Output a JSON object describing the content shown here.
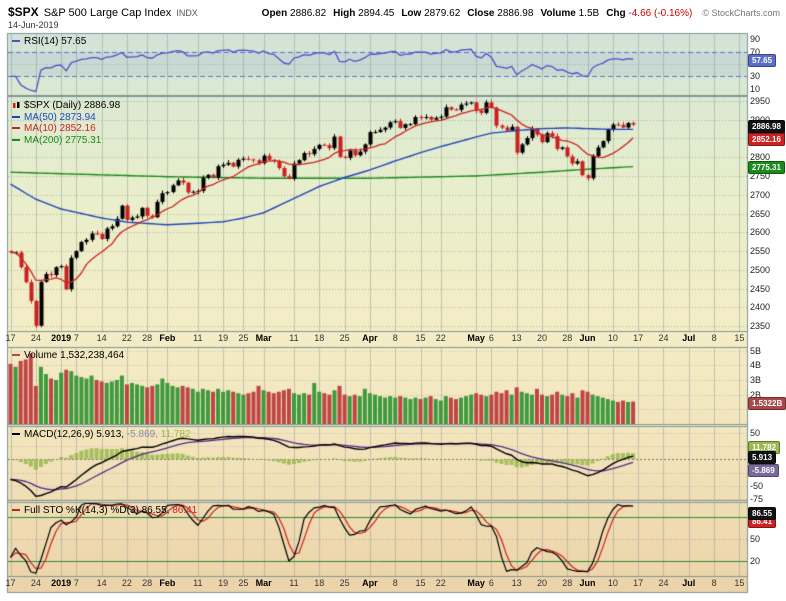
{
  "header": {
    "symbol": "$SPX",
    "name": "S&P 500 Large Cap Index",
    "exchange": "INDX",
    "date": "14-Jun-2019",
    "copyright": "© StockCharts.com",
    "quote": [
      {
        "label": "Open",
        "value": "2886.82",
        "color": "#000000"
      },
      {
        "label": "High",
        "value": "2894.45",
        "color": "#000000"
      },
      {
        "label": "Low",
        "value": "2879.62",
        "color": "#000000"
      },
      {
        "label": "Close",
        "value": "2886.98",
        "color": "#000000"
      },
      {
        "label": "Volume",
        "value": "1.5B",
        "color": "#000000"
      },
      {
        "label": "Chg",
        "value": "-4.66 (-0.16%)",
        "color": "#cc0000"
      }
    ]
  },
  "xaxis": {
    "labels": [
      {
        "t": "17",
        "i": 0,
        "b": 0
      },
      {
        "t": "24",
        "i": 5,
        "b": 0
      },
      {
        "t": "2019",
        "i": 10,
        "b": 1
      },
      {
        "t": "7",
        "i": 13,
        "b": 0
      },
      {
        "t": "14",
        "i": 18,
        "b": 0
      },
      {
        "t": "22",
        "i": 23,
        "b": 0
      },
      {
        "t": "28",
        "i": 27,
        "b": 0
      },
      {
        "t": "Feb",
        "i": 31,
        "b": 1
      },
      {
        "t": "11",
        "i": 37,
        "b": 0
      },
      {
        "t": "19",
        "i": 42,
        "b": 0
      },
      {
        "t": "25",
        "i": 46,
        "b": 0
      },
      {
        "t": "Mar",
        "i": 50,
        "b": 1
      },
      {
        "t": "11",
        "i": 56,
        "b": 0
      },
      {
        "t": "18",
        "i": 61,
        "b": 0
      },
      {
        "t": "25",
        "i": 66,
        "b": 0
      },
      {
        "t": "Apr",
        "i": 71,
        "b": 1
      },
      {
        "t": "8",
        "i": 76,
        "b": 0
      },
      {
        "t": "15",
        "i": 81,
        "b": 0
      },
      {
        "t": "22",
        "i": 85,
        "b": 0
      },
      {
        "t": "May",
        "i": 92,
        "b": 1
      },
      {
        "t": "6",
        "i": 95,
        "b": 0
      },
      {
        "t": "13",
        "i": 100,
        "b": 0
      },
      {
        "t": "20",
        "i": 105,
        "b": 0
      },
      {
        "t": "28",
        "i": 110,
        "b": 0
      },
      {
        "t": "Jun",
        "i": 114,
        "b": 1
      },
      {
        "t": "10",
        "i": 119,
        "b": 0
      },
      {
        "t": "17",
        "i": 124,
        "b": 0
      },
      {
        "t": "24",
        "i": 129,
        "b": 0
      },
      {
        "t": "Jul",
        "i": 134,
        "b": 1
      },
      {
        "t": "8",
        "i": 139,
        "b": 0
      },
      {
        "t": "15",
        "i": 144,
        "b": 0
      }
    ]
  },
  "panels": {
    "rsi": {
      "legend": "RSI(14) 57.65",
      "line_color": "#5050c8",
      "yticks": [
        90,
        70,
        30,
        10
      ],
      "overbought": 70,
      "oversold": 30,
      "badge": {
        "text": "57.65",
        "v": 57.65,
        "bg": "#5a6ec8"
      }
    },
    "price": {
      "legends": [
        {
          "text": "$SPX (Daily) 2886.98",
          "color": "#000000",
          "marker": "candle"
        },
        {
          "text": "MA(50) 2873.94",
          "color": "#2244bb",
          "marker": "#2244bb"
        },
        {
          "text": "MA(10) 2852.16",
          "color": "#cc2222",
          "marker": "#cc2222"
        },
        {
          "text": "MA(200) 2775.31",
          "color": "#1a8a1a",
          "marker": "#1a8a1a"
        }
      ],
      "yticks": [
        2950,
        2900,
        2850,
        2800,
        2750,
        2700,
        2650,
        2600,
        2550,
        2500,
        2450,
        2400,
        2350
      ],
      "badges": [
        {
          "text": "2873.94",
          "v": 2873.94,
          "bg": "#2244bb"
        },
        {
          "text": "2886.98",
          "v": 2886.98,
          "bg": "#111111"
        },
        {
          "text": "2852.16",
          "v": 2852.16,
          "bg": "#cc2222"
        },
        {
          "text": "2775.31",
          "v": 2775.31,
          "bg": "#1a8a1a"
        }
      ]
    },
    "volume": {
      "legend": "Volume 1,532,238,464",
      "yticks": [
        {
          "t": "5B",
          "v": 5
        },
        {
          "t": "4B",
          "v": 4
        },
        {
          "t": "3B",
          "v": 3
        },
        {
          "t": "2B",
          "v": 2
        }
      ],
      "badge": {
        "text": "1.5322B",
        "v": 1.532,
        "bg": "#a84848"
      }
    },
    "macd": {
      "legend_parts": [
        {
          "t": "MACD(12,26,9) 5.913,",
          "c": "#000000"
        },
        {
          "t": " -5.869,",
          "c": "#8888aa"
        },
        {
          "t": " 11.782",
          "c": "#9ab84f"
        }
      ],
      "yticks": [
        50,
        25,
        0,
        -25,
        -50,
        -75
      ],
      "badges": [
        {
          "text": "11.782",
          "v": 11.782,
          "bg": "#9ab84f",
          "dy": -7
        },
        {
          "text": "-5.869",
          "v": -5.869,
          "bg": "#7a6a9a",
          "dy": 7
        },
        {
          "text": "5.913",
          "v": 5.913,
          "bg": "#111111",
          "dy": 0
        }
      ]
    },
    "sto": {
      "legend_parts": [
        {
          "t": "Full STO %K(14,3) %D(3) 86.55,",
          "c": "#000000"
        },
        {
          "t": " 86.41",
          "c": "#cc2222"
        }
      ],
      "yticks": [
        80,
        50,
        20
      ],
      "upper": 80,
      "lower": 20,
      "badges": [
        {
          "text": "86.41",
          "v": 86.41,
          "bg": "#cc2222",
          "dy": 8
        },
        {
          "text": "86.55",
          "v": 86.55,
          "bg": "#111111",
          "dy": 0
        }
      ]
    }
  },
  "chart_data": {
    "type": "candlestick",
    "title": "$SPX S&P 500 Large Cap Index (Daily) with RSI(14), Volume, MACD(12,26,9), Full Stochastic %K(14,3) %D(3)",
    "x_start_date": "2018-12-17",
    "x_end_date": "2019-06-14",
    "xlim": [
      0,
      146
    ],
    "price_ylim": [
      2337,
      2963
    ],
    "close": [
      2546,
      2546,
      2507,
      2467,
      2417,
      2351,
      2468,
      2489,
      2486,
      2507,
      2510,
      2448,
      2532,
      2550,
      2574,
      2580,
      2597,
      2596,
      2582,
      2610,
      2616,
      2636,
      2671,
      2633,
      2639,
      2642,
      2665,
      2644,
      2640,
      2681,
      2704,
      2707,
      2725,
      2738,
      2732,
      2706,
      2708,
      2710,
      2745,
      2753,
      2746,
      2776,
      2780,
      2785,
      2775,
      2793,
      2796,
      2794,
      2792,
      2784,
      2804,
      2793,
      2790,
      2771,
      2749,
      2743,
      2783,
      2792,
      2811,
      2808,
      2822,
      2833,
      2832,
      2824,
      2855,
      2801,
      2798,
      2818,
      2805,
      2815,
      2834,
      2867,
      2867,
      2873,
      2879,
      2893,
      2896,
      2878,
      2888,
      2888,
      2907,
      2906,
      2907,
      2900,
      2905,
      2908,
      2933,
      2927,
      2926,
      2940,
      2943,
      2946,
      2924,
      2918,
      2946,
      2932,
      2884,
      2879,
      2871,
      2881,
      2812,
      2834,
      2851,
      2876,
      2860,
      2840,
      2864,
      2856,
      2822,
      2826,
      2802,
      2783,
      2789,
      2752,
      2744,
      2803,
      2826,
      2843,
      2873,
      2887,
      2886,
      2879,
      2891,
      2887
    ],
    "volume_billions": [
      4.1,
      3.9,
      4.3,
      4.4,
      4.8,
      2.6,
      3.9,
      3.4,
      3.1,
      3.0,
      3.5,
      3.7,
      3.6,
      3.3,
      3.2,
      3.1,
      3.3,
      3.0,
      2.9,
      2.8,
      2.9,
      3.0,
      3.3,
      2.7,
      2.8,
      2.7,
      2.6,
      2.5,
      2.6,
      2.7,
      3.1,
      2.8,
      2.6,
      2.5,
      2.6,
      2.5,
      2.4,
      2.2,
      2.4,
      2.3,
      2.2,
      2.4,
      2.2,
      2.3,
      2.2,
      2.1,
      2.0,
      2.1,
      2.2,
      2.6,
      2.3,
      2.2,
      2.1,
      2.2,
      2.3,
      2.4,
      2.1,
      2.0,
      2.1,
      2.0,
      2.8,
      2.2,
      2.1,
      2.0,
      2.3,
      2.6,
      2.0,
      1.9,
      2.0,
      1.9,
      2.4,
      2.1,
      2.0,
      1.9,
      1.8,
      1.9,
      1.8,
      1.9,
      1.8,
      1.7,
      1.8,
      1.7,
      1.8,
      1.9,
      1.7,
      1.6,
      1.9,
      1.8,
      1.7,
      1.8,
      1.9,
      2.0,
      2.1,
      2.0,
      1.9,
      2.0,
      2.2,
      2.1,
      2.3,
      2.0,
      2.5,
      2.2,
      2.1,
      2.0,
      2.4,
      2.0,
      1.9,
      2.0,
      2.2,
      2.0,
      1.9,
      2.1,
      1.8,
      2.3,
      2.2,
      2.0,
      1.9,
      1.8,
      1.7,
      1.6,
      1.5,
      1.6,
      1.5,
      1.53
    ],
    "ma50_points": [
      [
        0,
        2728
      ],
      [
        5,
        2688
      ],
      [
        10,
        2662
      ],
      [
        18,
        2638
      ],
      [
        23,
        2627
      ],
      [
        31,
        2620
      ],
      [
        37,
        2624
      ],
      [
        42,
        2628
      ],
      [
        46,
        2638
      ],
      [
        50,
        2652
      ],
      [
        56,
        2690
      ],
      [
        61,
        2722
      ],
      [
        66,
        2746
      ],
      [
        71,
        2766
      ],
      [
        76,
        2790
      ],
      [
        81,
        2812
      ],
      [
        85,
        2828
      ],
      [
        92,
        2854
      ],
      [
        95,
        2864
      ],
      [
        100,
        2871
      ],
      [
        105,
        2876
      ],
      [
        110,
        2878
      ],
      [
        114,
        2876
      ],
      [
        119,
        2874
      ],
      [
        123,
        2874
      ]
    ],
    "ma200_points": [
      [
        0,
        2760
      ],
      [
        10,
        2756
      ],
      [
        31,
        2748
      ],
      [
        50,
        2744
      ],
      [
        71,
        2744
      ],
      [
        92,
        2750
      ],
      [
        105,
        2760
      ],
      [
        114,
        2768
      ],
      [
        123,
        2775
      ]
    ],
    "rsi_seed": [
      1.2,
      2.8
    ],
    "macd_seed": [
      2620,
      2655,
      -38
    ],
    "last_values": {
      "close": 2886.98,
      "ma50": 2873.94,
      "ma10": 2852.16,
      "ma200": 2775.31,
      "rsi": 57.65,
      "volume": 1532238464,
      "macd": 5.913,
      "macd_signal": -5.869,
      "macd_hist": 11.782,
      "stoch_k": 86.55,
      "stoch_d": 86.41
    }
  }
}
